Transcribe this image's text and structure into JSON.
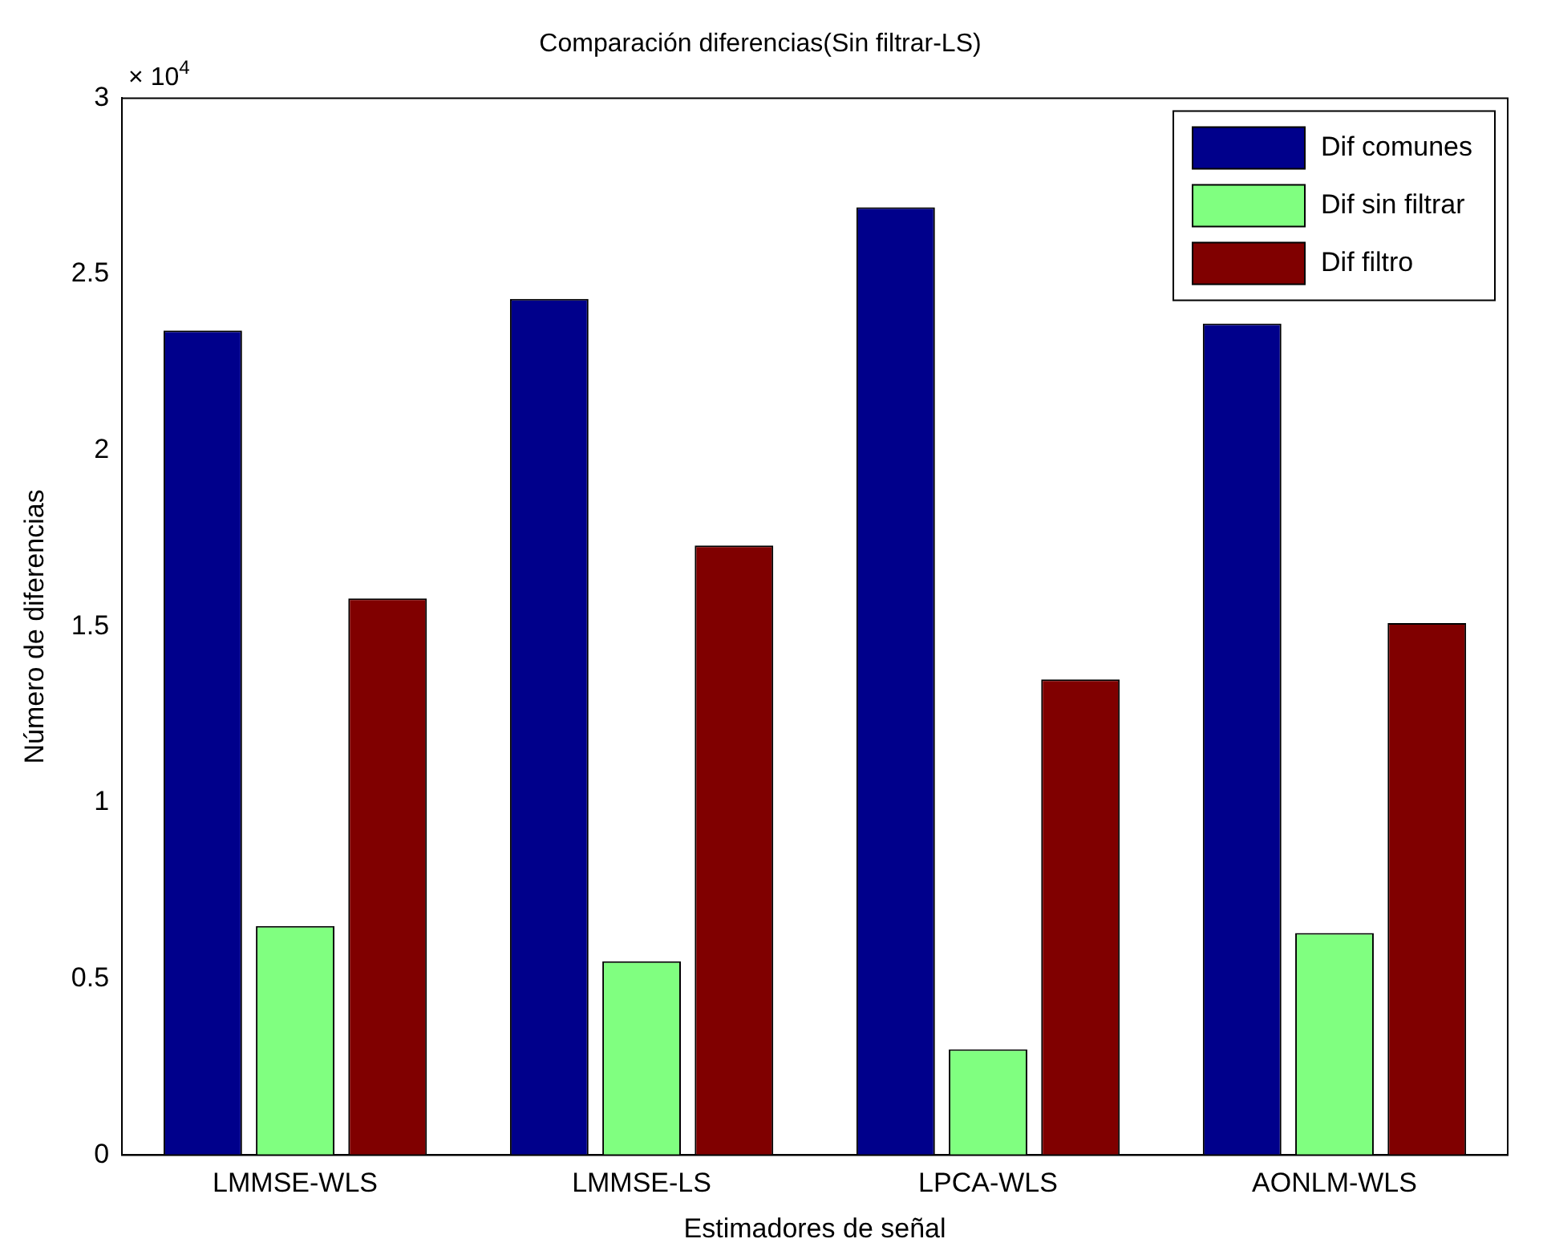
{
  "chart_data": {
    "type": "bar",
    "title": "Comparación diferencias(Sin filtrar-LS)",
    "xlabel": "Estimadores de señal",
    "ylabel": "Número de diferencias",
    "categories": [
      "LMMSE-WLS",
      "LMMSE-LS",
      "LPCA-WLS",
      "AONLM-WLS"
    ],
    "series": [
      {
        "name": "Dif comunes",
        "color": "#00008b",
        "values": [
          2.34,
          2.43,
          2.69,
          2.36
        ]
      },
      {
        "name": "Dif sin filtrar",
        "color": "#80ff80",
        "values": [
          0.65,
          0.55,
          0.3,
          0.63
        ]
      },
      {
        "name": "Dif filtro",
        "color": "#800000",
        "values": [
          1.58,
          1.73,
          1.35,
          1.51
        ]
      }
    ],
    "ylim": [
      0,
      3
    ],
    "yticks": [
      0,
      0.5,
      1,
      1.5,
      2,
      2.5,
      3
    ],
    "annotations": [
      "× 10$^{4}$"
    ],
    "legend": "top right",
    "grid": false
  }
}
